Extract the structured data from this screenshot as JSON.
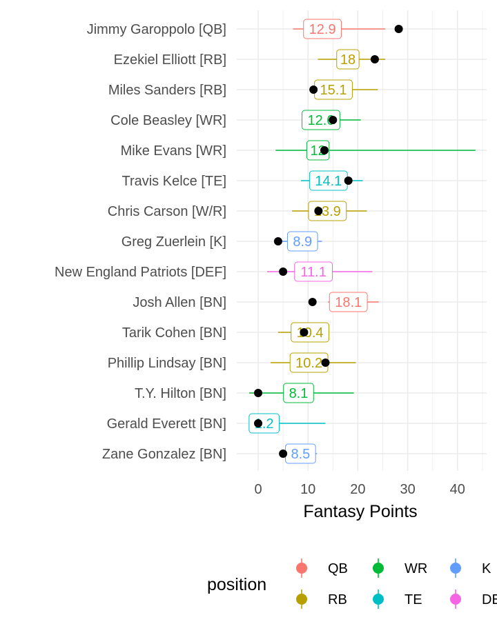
{
  "chart_data": {
    "type": "scatter",
    "xlabel": "Fantasy Points",
    "ylabel": "",
    "xlim": [
      -2,
      45
    ],
    "xticks": [
      0,
      10,
      20,
      30,
      40
    ],
    "grid": true,
    "legend": {
      "title": "position",
      "placement": "bottom",
      "items": [
        {
          "label": "QB",
          "color": "#F8766D"
        },
        {
          "label": "RB",
          "color": "#B79F00"
        },
        {
          "label": "WR",
          "color": "#00BA38"
        },
        {
          "label": "TE",
          "color": "#00BFC4"
        },
        {
          "label": "K",
          "color": "#619CFF"
        },
        {
          "label": "DEF",
          "color": "#F564E3"
        }
      ]
    },
    "players": [
      {
        "name": "Jimmy Garoppolo [QB]",
        "position": "QB",
        "projection": 12.9,
        "low": 7.0,
        "high": 25.5,
        "actual": 28.2
      },
      {
        "name": "Ezekiel Elliott [RB]",
        "position": "RB",
        "projection": 18,
        "low": 12.0,
        "high": 25.5,
        "actual": 23.4
      },
      {
        "name": "Miles Sanders [RB]",
        "position": "RB",
        "projection": 15.1,
        "low": 10.3,
        "high": 24.0,
        "actual": 11.1
      },
      {
        "name": "Cole Beasley [WR]",
        "position": "WR",
        "projection": 12.6,
        "low": 9.5,
        "high": 20.6,
        "actual": 15.0
      },
      {
        "name": "Mike Evans [WR]",
        "position": "WR",
        "projection": 12,
        "low": 3.5,
        "high": 43.6,
        "actual": 13.3
      },
      {
        "name": "Travis Kelce [TE]",
        "position": "TE",
        "projection": 14.1,
        "low": 8.6,
        "high": 21.0,
        "actual": 18.1
      },
      {
        "name": "Chris Carson [W/R]",
        "position": "RB",
        "projection": 13.9,
        "low": 6.8,
        "high": 21.8,
        "actual": 12.1
      },
      {
        "name": "Greg Zuerlein [K]",
        "position": "K",
        "projection": 8.9,
        "low": 3.5,
        "high": 12.8,
        "actual": 4.0
      },
      {
        "name": "New England Patriots [DEF]",
        "position": "DEF",
        "projection": 11.1,
        "low": 1.8,
        "high": 22.9,
        "actual": 5.0
      },
      {
        "name": "Josh Allen [BN]",
        "position": "QB",
        "projection": 18.1,
        "low": 14.0,
        "high": 24.2,
        "actual": 10.9
      },
      {
        "name": "Tarik Cohen [BN]",
        "position": "RB",
        "projection": 10.4,
        "low": 4.0,
        "high": 14.2,
        "actual": 9.2
      },
      {
        "name": "Phillip Lindsay [BN]",
        "position": "RB",
        "projection": 10.2,
        "low": 2.5,
        "high": 19.6,
        "actual": 13.5
      },
      {
        "name": "T.Y. Hilton [BN]",
        "position": "WR",
        "projection": 8.1,
        "low": -1.8,
        "high": 19.2,
        "actual": 0.0
      },
      {
        "name": "Gerald Everett [BN]",
        "position": "TE",
        "projection": 1.2,
        "low": -1.7,
        "high": 13.5,
        "actual": 0.0
      },
      {
        "name": "Zane Gonzalez [BN]",
        "position": "K",
        "projection": 8.5,
        "low": 5.0,
        "high": 11.8,
        "actual": 5.0
      }
    ]
  }
}
